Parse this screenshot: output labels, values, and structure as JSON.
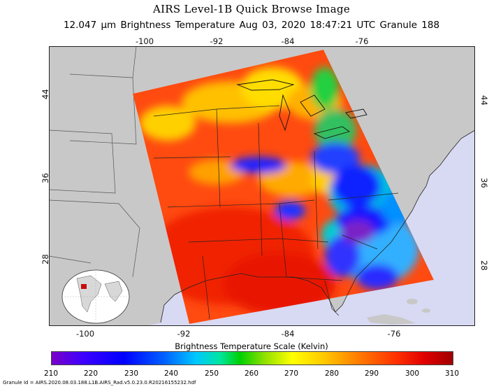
{
  "title": "AIRS Level-1B Quick Browse Image",
  "subtitle": "12.047 μm Brightness Temperature     Aug 03, 2020 18:47:21 UTC   Granule 188",
  "map": {
    "top_lon_ticks": [
      "-100",
      "-92",
      "-84",
      "-76"
    ],
    "bottom_lon_ticks": [
      "-100",
      "-92",
      "-84",
      "-76"
    ],
    "left_lat_ticks": [
      "44",
      "36",
      "28"
    ],
    "right_lat_ticks": [
      "44",
      "36",
      "28"
    ],
    "colors": {
      "land": "#c8c8c8",
      "ocean": "#d8d9f2",
      "warm": "#ff4a10",
      "cold": "#1010ff"
    }
  },
  "colorbar": {
    "label": "Brightness Temperature Scale (Kelvin)",
    "ticks": [
      "210",
      "220",
      "230",
      "240",
      "250",
      "260",
      "270",
      "280",
      "290",
      "300",
      "310"
    ]
  },
  "granule_id": "Granule Id = AIRS.2020.08.03.188.L1B.AIRS_Rad.v5.0.23.0.R20216155232.hdf"
}
